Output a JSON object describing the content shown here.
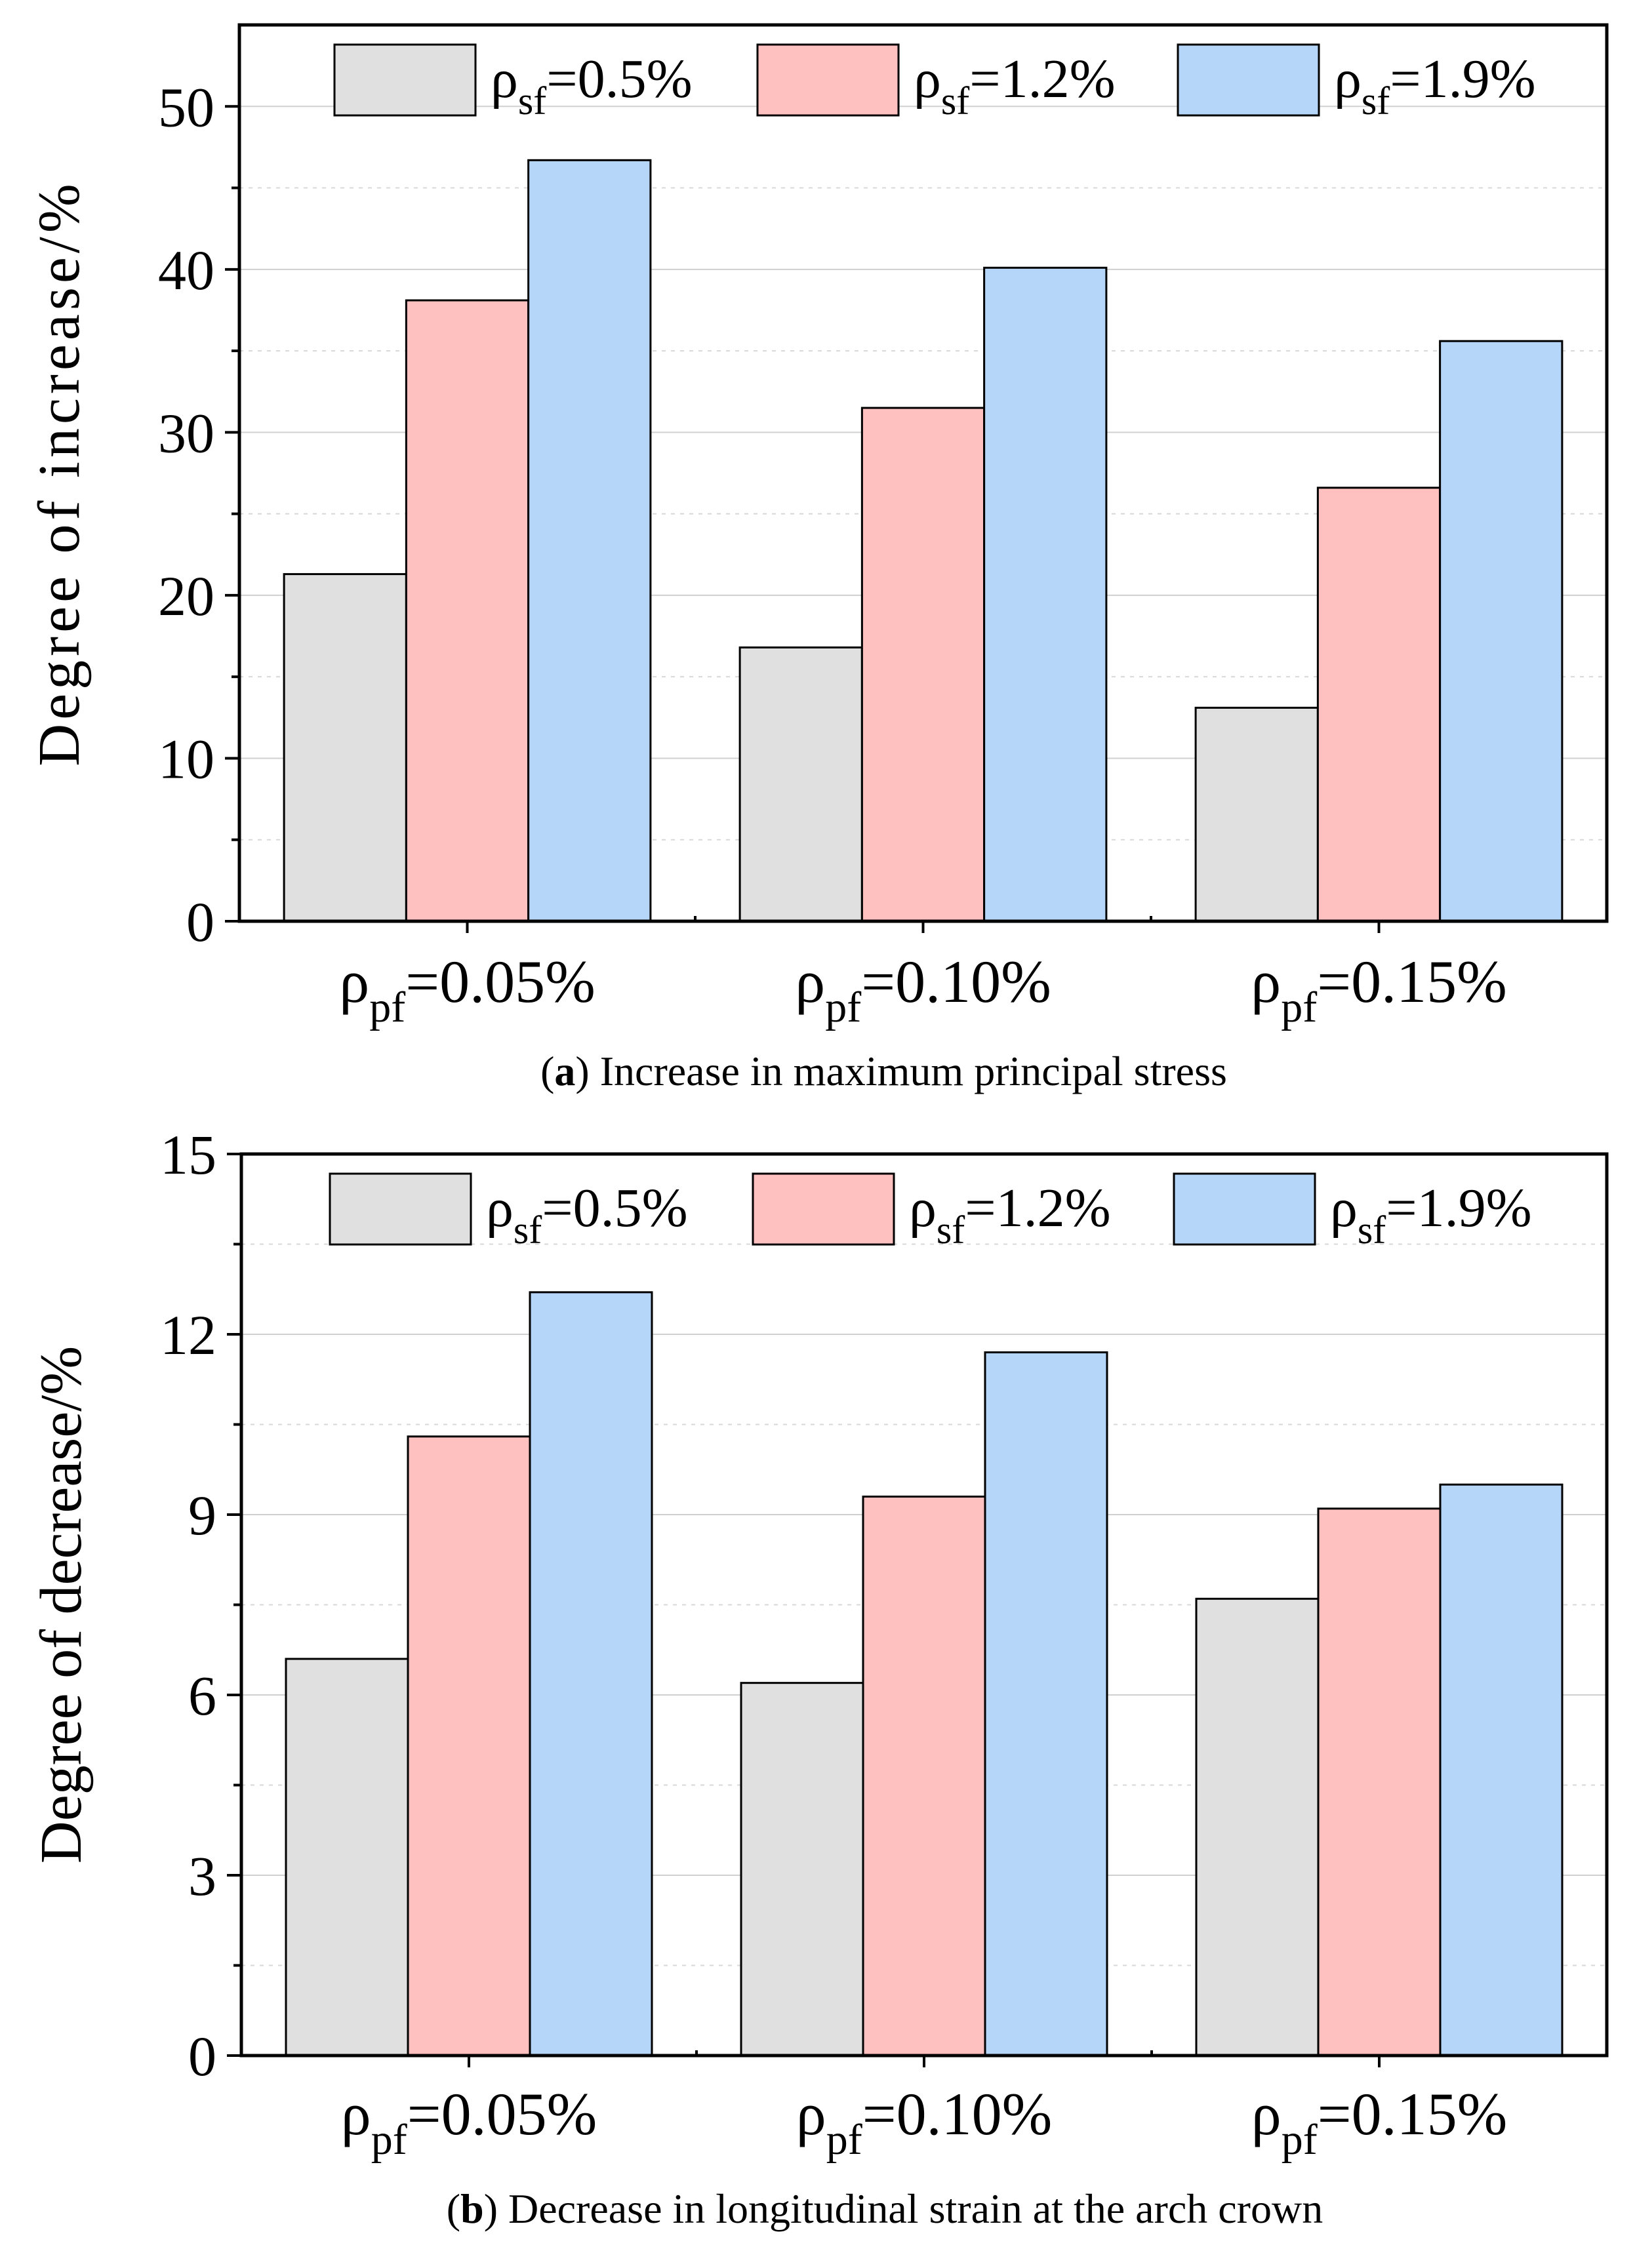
{
  "chart_data": [
    {
      "type": "bar",
      "panel": "a",
      "caption_letter": "a",
      "caption_text": "Increase in maximum principal stress",
      "ylabel": "Degree of increase/%",
      "ylim": [
        0,
        55
      ],
      "yticks": [
        0,
        10,
        20,
        30,
        40,
        50
      ],
      "grid": true,
      "legend_position": "top",
      "categories": [
        {
          "symbol": "ρ",
          "sub": "pf",
          "value": "=0.05%"
        },
        {
          "symbol": "ρ",
          "sub": "pf",
          "value": "=0.10%"
        },
        {
          "symbol": "ρ",
          "sub": "pf",
          "value": "=0.15%"
        }
      ],
      "series": [
        {
          "name": "ρsf=0.5%",
          "symbol": "ρ",
          "sub": "sf",
          "value": "=0.5%",
          "color": "#e0e0e0",
          "values": [
            21.3,
            16.8,
            13.1
          ]
        },
        {
          "name": "ρsf=1.2%",
          "symbol": "ρ",
          "sub": "sf",
          "value": "=1.2%",
          "color": "#ffc0c0",
          "values": [
            38.1,
            31.5,
            26.6
          ]
        },
        {
          "name": "ρsf=1.9%",
          "symbol": "ρ",
          "sub": "sf",
          "value": "=1.9%",
          "color": "#b5d6f9",
          "values": [
            46.7,
            40.1,
            35.6
          ]
        }
      ]
    },
    {
      "type": "bar",
      "panel": "b",
      "caption_letter": "b",
      "caption_text": "Decrease in longitudinal strain at the arch crown",
      "ylabel": "Degree of decrease/%",
      "ylim": [
        0,
        15
      ],
      "yticks": [
        0,
        3,
        6,
        9,
        12,
        15
      ],
      "grid": true,
      "legend_position": "top",
      "categories": [
        {
          "symbol": "ρ",
          "sub": "pf",
          "value": "=0.05%"
        },
        {
          "symbol": "ρ",
          "sub": "pf",
          "value": "=0.10%"
        },
        {
          "symbol": "ρ",
          "sub": "pf",
          "value": "=0.15%"
        }
      ],
      "series": [
        {
          "name": "ρsf=0.5%",
          "symbol": "ρ",
          "sub": "sf",
          "value": "=0.5%",
          "color": "#e0e0e0",
          "values": [
            6.6,
            6.2,
            7.6
          ]
        },
        {
          "name": "ρsf=1.2%",
          "symbol": "ρ",
          "sub": "sf",
          "value": "=1.2%",
          "color": "#ffc0c0",
          "values": [
            10.3,
            9.3,
            9.1
          ]
        },
        {
          "name": "ρsf=1.9%",
          "symbol": "ρ",
          "sub": "sf",
          "value": "=1.9%",
          "color": "#b5d6f9",
          "values": [
            12.7,
            11.7,
            9.5
          ]
        }
      ]
    }
  ]
}
